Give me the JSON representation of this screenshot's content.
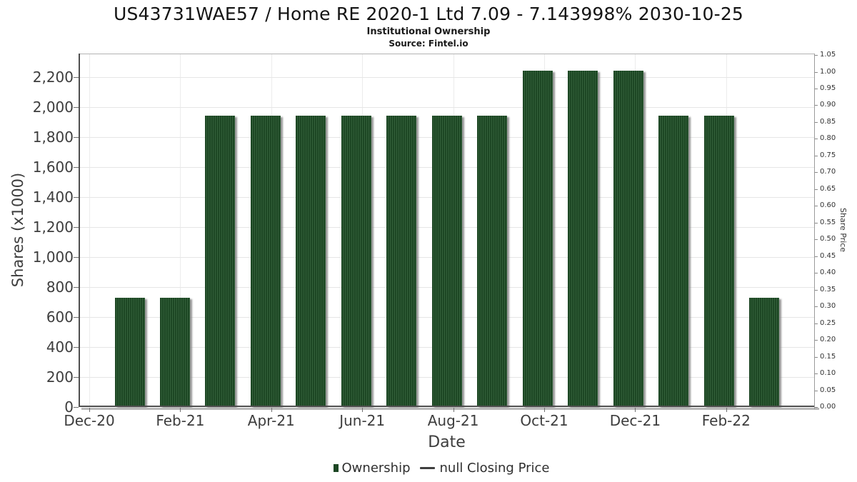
{
  "header": {
    "title": "US43731WAE57 / Home RE 2020-1 Ltd 7.09 - 7.143998% 2030-10-25",
    "subtitle": "Institutional Ownership",
    "source": "Source: Fintel.io"
  },
  "chart_data": {
    "type": "bar",
    "title": "US43731WAE57 / Home RE 2020-1 Ltd 7.09 - 7.143998% 2030-10-25",
    "subtitle": "Institutional Ownership",
    "source": "Source: Fintel.io",
    "xlabel": "Date",
    "ylabel": "Shares (x1000)",
    "ylabel_right": "Share Price",
    "x": [
      "Dec-20",
      "Jan-21",
      "Feb-21",
      "Mar-21",
      "Apr-21",
      "May-21",
      "Jun-21",
      "Jul-21",
      "Aug-21",
      "Sep-21",
      "Oct-21",
      "Nov-21",
      "Dec-21",
      "Jan-22",
      "Feb-22"
    ],
    "series": [
      {
        "name": "Ownership",
        "values": [
          730,
          730,
          1945,
          1945,
          1945,
          1945,
          1945,
          1945,
          1945,
          2245,
          2245,
          2245,
          1945,
          1945,
          730
        ]
      }
    ],
    "xticks": [
      "Dec-20",
      "Feb-21",
      "Apr-21",
      "Jun-21",
      "Aug-21",
      "Oct-21",
      "Dec-21",
      "Feb-22"
    ],
    "yticks_left": [
      0,
      200,
      400,
      600,
      800,
      1000,
      1200,
      1400,
      1600,
      1800,
      2000,
      2200
    ],
    "yticks_right": [
      0,
      0.05,
      0.1,
      0.15,
      0.2,
      0.25,
      0.3,
      0.35,
      0.4,
      0.45,
      0.5,
      0.55,
      0.6,
      0.65,
      0.7,
      0.75,
      0.8,
      0.85,
      0.9,
      0.95,
      1,
      1.05
    ],
    "ylim_left": [
      0,
      2357
    ],
    "ylim_right": [
      0,
      1.05
    ],
    "grid": true,
    "bar_color": "#1d4724",
    "bar_stripe_color": "#33603a",
    "legend_position": "bottom",
    "legend": [
      {
        "label": "Ownership",
        "marker": "square",
        "color": "#1d4724"
      },
      {
        "label": "null Closing Price",
        "marker": "dash",
        "color": "#3f3f3f"
      }
    ]
  }
}
